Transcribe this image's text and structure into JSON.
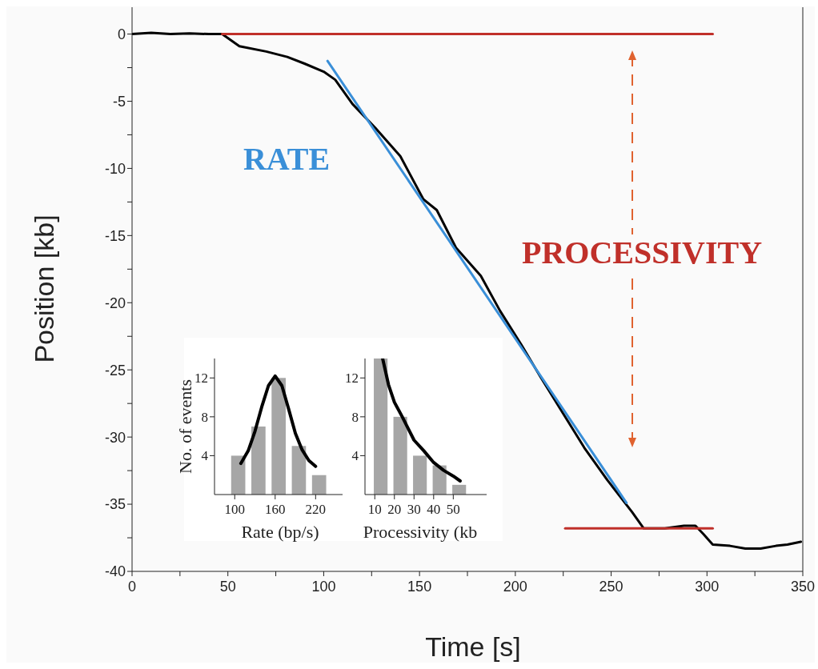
{
  "chart_data": [
    {
      "type": "line",
      "xlabel": "Time [s]",
      "ylabel": "Position [kb]",
      "xlim": [
        0,
        350
      ],
      "ylim": [
        -40,
        2
      ],
      "xticks": [
        0,
        {
          "value": 25,
          "label": null
        },
        50,
        {
          "value": 75,
          "label": null
        },
        100,
        {
          "value": 125,
          "label": null
        },
        150,
        {
          "value": 175,
          "label": null
        },
        200,
        {
          "value": 225,
          "label": null
        },
        250,
        {
          "value": 275,
          "label": null
        },
        300,
        {
          "value": 325,
          "label": null
        },
        350
      ],
      "yticks": [
        -40,
        {
          "value": -37.5,
          "label": null
        },
        -35,
        {
          "value": -32.5,
          "label": null
        },
        -30,
        {
          "value": -27.5,
          "label": null
        },
        -25,
        {
          "value": -22.5,
          "label": null
        },
        -20,
        {
          "value": -17.5,
          "label": null
        },
        -15,
        {
          "value": -12.5,
          "label": null
        },
        -10,
        {
          "value": -7.5,
          "label": null
        },
        -5,
        {
          "value": -2.5,
          "label": null
        },
        0
      ],
      "series": [
        {
          "color": "#000000",
          "x": [
            0,
            10,
            20,
            30,
            40,
            47,
            56,
            70,
            81,
            90,
            100,
            106,
            115,
            127,
            140,
            152,
            159,
            169,
            182,
            192,
            203,
            213,
            223,
            236,
            248,
            261,
            267,
            278,
            288,
            294,
            298,
            303,
            312,
            320,
            328,
            336,
            342,
            349
          ],
          "values": [
            0,
            0.1,
            0,
            0.05,
            0,
            0,
            -0.9,
            -1.3,
            -1.7,
            -2.2,
            -2.8,
            -3.4,
            -5.2,
            -7.0,
            -9.1,
            -12.3,
            -13.1,
            -15.9,
            -18.0,
            -20.6,
            -23.1,
            -25.5,
            -27.8,
            -30.8,
            -33.2,
            -35.6,
            -36.8,
            -36.8,
            -36.6,
            -36.6,
            -37.2,
            -38.0,
            -38.1,
            -38.3,
            -38.3,
            -38.1,
            -38.0,
            -37.8
          ]
        },
        {
          "color": "#3a8fd8",
          "x": [
            102,
            258
          ],
          "values": [
            -2.0,
            -34.9
          ]
        },
        {
          "color": "#c0302a",
          "x": [
            47,
            303
          ],
          "values": [
            0,
            0
          ]
        },
        {
          "color": "#c0302a",
          "x": [
            226,
            303
          ],
          "values": [
            -36.8,
            -36.8
          ]
        }
      ],
      "annotations": [
        "RATE",
        "PROCESSIVITY"
      ]
    },
    {
      "type": "bar",
      "xlabel": "Rate (bp/s)",
      "ylabel": "No. of events",
      "xlim": [
        70,
        260
      ],
      "xticks": [
        100,
        160,
        220
      ],
      "ylim": [
        0,
        14
      ],
      "yticks": [
        4,
        8,
        12
      ],
      "x": [
        105,
        135,
        165,
        195,
        225
      ],
      "series": [
        {
          "color": "#a6a6a6",
          "values": [
            4,
            7,
            12,
            5,
            2
          ]
        },
        {
          "type": "line",
          "color": "#000000",
          "x": [
            109,
            120,
            130,
            140,
            150,
            160,
            170,
            180,
            190,
            200,
            210,
            220
          ],
          "values": [
            3.2,
            4.5,
            6.5,
            9.0,
            11.2,
            12.2,
            11.2,
            8.8,
            6.3,
            4.6,
            3.5,
            2.9
          ]
        }
      ]
    },
    {
      "type": "bar",
      "xlabel": "Processivity (kb",
      "xlim": [
        5,
        67
      ],
      "xticks": [
        10,
        20,
        30,
        40,
        50
      ],
      "ylim": [
        0,
        14
      ],
      "yticks": [
        4,
        8,
        12
      ],
      "x": [
        13,
        23,
        33,
        43,
        53
      ],
      "series": [
        {
          "color": "#a6a6a6",
          "values": [
            14,
            8,
            4,
            3,
            1
          ]
        },
        {
          "type": "line",
          "color": "#000000",
          "x": [
            14,
            17,
            20,
            24,
            30,
            35,
            40,
            45,
            50,
            53.5
          ],
          "values": [
            14,
            11.3,
            9.5,
            8,
            5.6,
            4.5,
            3.3,
            2.5,
            1.9,
            1.4
          ]
        }
      ]
    }
  ]
}
